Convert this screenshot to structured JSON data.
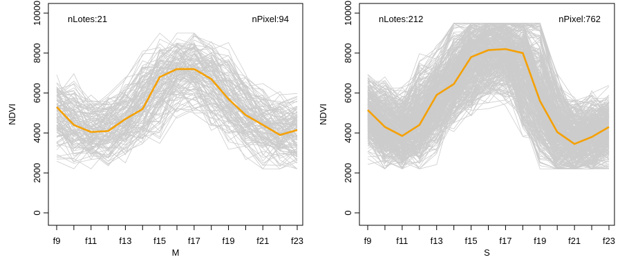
{
  "chart_data": [
    {
      "type": "line",
      "xlabel": "M",
      "ylabel": "NDVI",
      "ylim": [
        0,
        10000
      ],
      "yticks": [
        0,
        2000,
        4000,
        6000,
        8000,
        10000
      ],
      "xticks": [
        "f9",
        "f11",
        "f13",
        "f15",
        "f17",
        "f19",
        "f21",
        "f23"
      ],
      "x": [
        9,
        10,
        11,
        12,
        13,
        14,
        15,
        16,
        17,
        18,
        19,
        20,
        21,
        22,
        23
      ],
      "annotations": {
        "left": "nLotes:21",
        "right": "nPixel:94"
      },
      "series": [
        {
          "role": "mean",
          "color": "#f5a000",
          "values": [
            5300,
            4400,
            4050,
            4100,
            4700,
            5200,
            6800,
            7200,
            7200,
            6700,
            5700,
            4900,
            4400,
            3900,
            4150
          ]
        }
      ],
      "pixel_profiles": {
        "color": "#cccccc",
        "count": 94,
        "value_range": [
          2200,
          9000
        ]
      }
    },
    {
      "type": "line",
      "xlabel": "S",
      "ylabel": "NDVI",
      "ylim": [
        0,
        10000
      ],
      "yticks": [
        0,
        2000,
        4000,
        6000,
        8000,
        10000
      ],
      "xticks": [
        "f9",
        "f11",
        "f13",
        "f15",
        "f17",
        "f19",
        "f21",
        "f23"
      ],
      "x": [
        9,
        10,
        11,
        12,
        13,
        14,
        15,
        16,
        17,
        18,
        19,
        20,
        21,
        22,
        23
      ],
      "annotations": {
        "left": "nLotes:212",
        "right": "nPixel:762"
      },
      "series": [
        {
          "role": "mean",
          "color": "#f5a000",
          "values": [
            5150,
            4300,
            3850,
            4400,
            5900,
            6450,
            7800,
            8150,
            8200,
            8000,
            5600,
            4050,
            3450,
            3800,
            4300
          ]
        }
      ],
      "pixel_profiles": {
        "color": "#cccccc",
        "count": 762,
        "value_range": [
          2200,
          9500
        ]
      }
    }
  ]
}
